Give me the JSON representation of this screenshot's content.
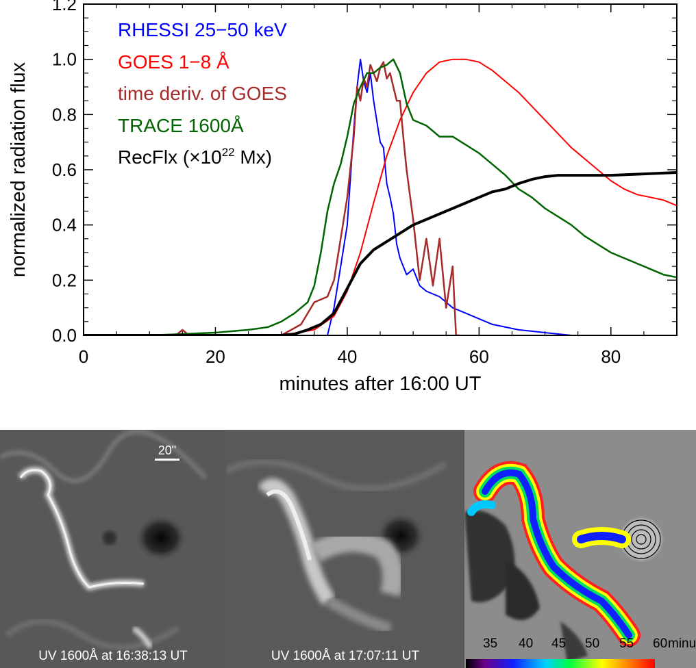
{
  "chart_data": {
    "type": "line",
    "title": "",
    "xlabel": "minutes after 16:00 UT",
    "ylabel": "normalized radiation flux",
    "xlim": [
      0,
      90
    ],
    "ylim": [
      0,
      1.2
    ],
    "xticks": [
      "0",
      "20",
      "40",
      "60",
      "80"
    ],
    "yticks": [
      "0.0",
      "0.2",
      "0.4",
      "0.6",
      "0.8",
      "1.0",
      "1.2"
    ],
    "grid": false,
    "legend_position": "top-left",
    "series": [
      {
        "name": "RHESSI 25−50 keV",
        "color": "#0000ff",
        "x": [
          37,
          38,
          39,
          40,
          41,
          41.5,
          42,
          42.5,
          43,
          43.5,
          44,
          45,
          45.5,
          46,
          46.5,
          47,
          47.5,
          48,
          48.5,
          49,
          50,
          51,
          52,
          53,
          54,
          55,
          56,
          58,
          60,
          62,
          64,
          66,
          68,
          70,
          72,
          74
        ],
        "y": [
          0.0,
          0.1,
          0.25,
          0.4,
          0.75,
          0.9,
          1.0,
          0.92,
          0.88,
          0.95,
          0.85,
          0.7,
          0.68,
          0.55,
          0.5,
          0.44,
          0.33,
          0.28,
          0.25,
          0.22,
          0.24,
          0.18,
          0.16,
          0.15,
          0.14,
          0.12,
          0.1,
          0.08,
          0.06,
          0.04,
          0.03,
          0.02,
          0.015,
          0.01,
          0.005,
          0.0
        ]
      },
      {
        "name": "GOES 1−8 Å",
        "color": "#ff0000",
        "x": [
          0,
          30,
          35,
          38,
          40,
          42,
          44,
          46,
          48,
          50,
          52,
          54,
          56,
          58,
          60,
          62,
          64,
          66,
          68,
          70,
          72,
          74,
          76,
          78,
          80,
          82,
          84,
          86,
          88,
          90
        ],
        "y": [
          0.0,
          0.0,
          0.02,
          0.07,
          0.16,
          0.3,
          0.48,
          0.65,
          0.78,
          0.88,
          0.95,
          0.99,
          1.0,
          1.0,
          0.99,
          0.96,
          0.92,
          0.88,
          0.83,
          0.78,
          0.73,
          0.68,
          0.64,
          0.6,
          0.56,
          0.53,
          0.51,
          0.5,
          0.49,
          0.47
        ]
      },
      {
        "name": "time deriv. of GOES",
        "color": "#a52a2a",
        "x": [
          0,
          14,
          15,
          16,
          30,
          33,
          35,
          37,
          38,
          39,
          40,
          41,
          41.5,
          42,
          42.5,
          43,
          43.5,
          44,
          44.5,
          45,
          45.5,
          46,
          46.5,
          47,
          47.5,
          48,
          48.5,
          49,
          50,
          51,
          52,
          53,
          54,
          55,
          56,
          56.5,
          57
        ],
        "y": [
          0.0,
          0.0,
          0.02,
          0.0,
          0.0,
          0.04,
          0.12,
          0.14,
          0.2,
          0.35,
          0.5,
          0.72,
          0.9,
          0.85,
          0.93,
          0.9,
          0.98,
          0.95,
          0.92,
          0.97,
          0.99,
          0.93,
          0.95,
          0.9,
          0.85,
          0.85,
          0.72,
          0.6,
          0.42,
          0.2,
          0.35,
          0.18,
          0.35,
          0.1,
          0.25,
          0.0,
          0.0
        ]
      },
      {
        "name": "TRACE 1600Å",
        "color": "#006400",
        "x": [
          0,
          10,
          20,
          25,
          28,
          30,
          32,
          34,
          35,
          36,
          37,
          38,
          39,
          40,
          41,
          42,
          43,
          44,
          45,
          46,
          47,
          48,
          49,
          50,
          52,
          54,
          56,
          58,
          60,
          62,
          64,
          66,
          68,
          70,
          72,
          74,
          76,
          78,
          80,
          82,
          84,
          86,
          88,
          90
        ],
        "y": [
          0.0,
          0.0,
          0.01,
          0.02,
          0.03,
          0.05,
          0.08,
          0.12,
          0.18,
          0.3,
          0.45,
          0.55,
          0.62,
          0.72,
          0.84,
          0.9,
          0.95,
          0.95,
          0.97,
          0.98,
          1.0,
          0.95,
          0.84,
          0.78,
          0.76,
          0.72,
          0.72,
          0.69,
          0.66,
          0.62,
          0.58,
          0.53,
          0.5,
          0.46,
          0.43,
          0.4,
          0.36,
          0.33,
          0.3,
          0.28,
          0.26,
          0.24,
          0.22,
          0.21
        ]
      },
      {
        "name": "RecFlx (×10",
        "color": "#000000",
        "x": [
          0,
          30,
          32,
          34,
          36,
          38,
          40,
          42,
          44,
          46,
          48,
          50,
          52,
          54,
          56,
          58,
          60,
          62,
          64,
          66,
          68,
          70,
          72,
          76,
          80,
          85,
          90
        ],
        "y": [
          0.0,
          0.0,
          0.005,
          0.02,
          0.04,
          0.08,
          0.17,
          0.26,
          0.31,
          0.34,
          0.37,
          0.4,
          0.42,
          0.44,
          0.46,
          0.48,
          0.5,
          0.52,
          0.53,
          0.55,
          0.565,
          0.575,
          0.58,
          0.58,
          0.58,
          0.585,
          0.59
        ]
      }
    ]
  },
  "legend": {
    "rhessi": "RHESSI 25−50 keV",
    "goes": "GOES 1−8 Å",
    "goes_deriv": "time deriv. of GOES",
    "trace": "TRACE 1600Å",
    "recflx_prefix": "RecFlx (×10",
    "recflx_exponent": "22",
    "recflx_unit": " Mx)"
  },
  "panels": {
    "left_caption": "UV 1600Å at 16:38:13 UT",
    "middle_caption": "UV 1600Å at 17:07:11 UT",
    "scale_bar": "20\"",
    "colorbar_ticks": [
      "35",
      "40",
      "45",
      "50",
      "55",
      "60"
    ],
    "colorbar_unit": "minutes"
  }
}
